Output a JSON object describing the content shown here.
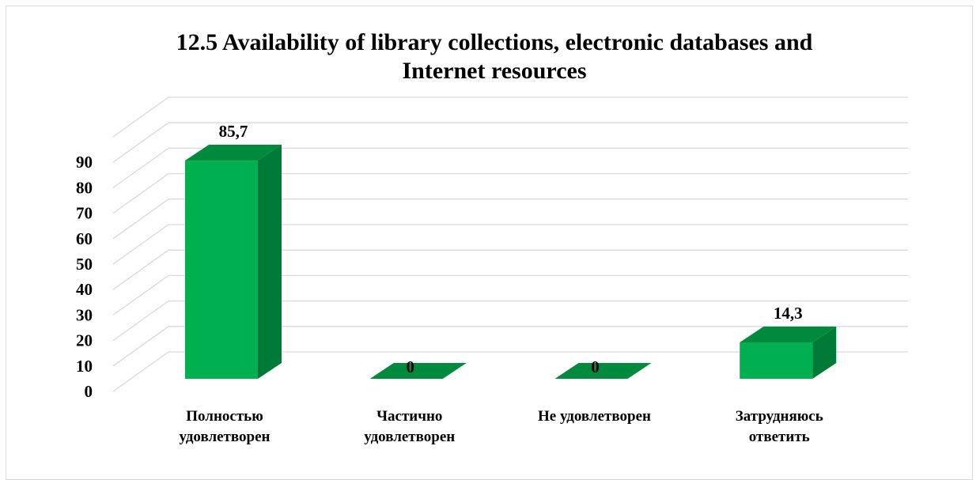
{
  "chart_data": {
    "type": "bar",
    "title": "12.5 Availability of library collections, electronic databases and\nInternet resources",
    "categories": [
      [
        "Полностью",
        "удовлетворен"
      ],
      [
        "Частично",
        "удовлетворен"
      ],
      [
        "Не удовлетворен"
      ],
      [
        "Затрудняюсь",
        "ответить"
      ]
    ],
    "values": [
      85.7,
      0,
      0,
      14.3
    ],
    "data_labels": [
      "85,7",
      "0",
      "0",
      "14,3"
    ],
    "ylim": [
      0,
      90
    ],
    "yticks": [
      "0",
      "10",
      "20",
      "30",
      "40",
      "50",
      "60",
      "70",
      "80",
      "90"
    ],
    "grid": true,
    "style": "3d-column",
    "colors": {
      "front": "#00b050",
      "top": "#008a3e",
      "side": "#007a37",
      "grid": "#d9d9d9"
    }
  }
}
